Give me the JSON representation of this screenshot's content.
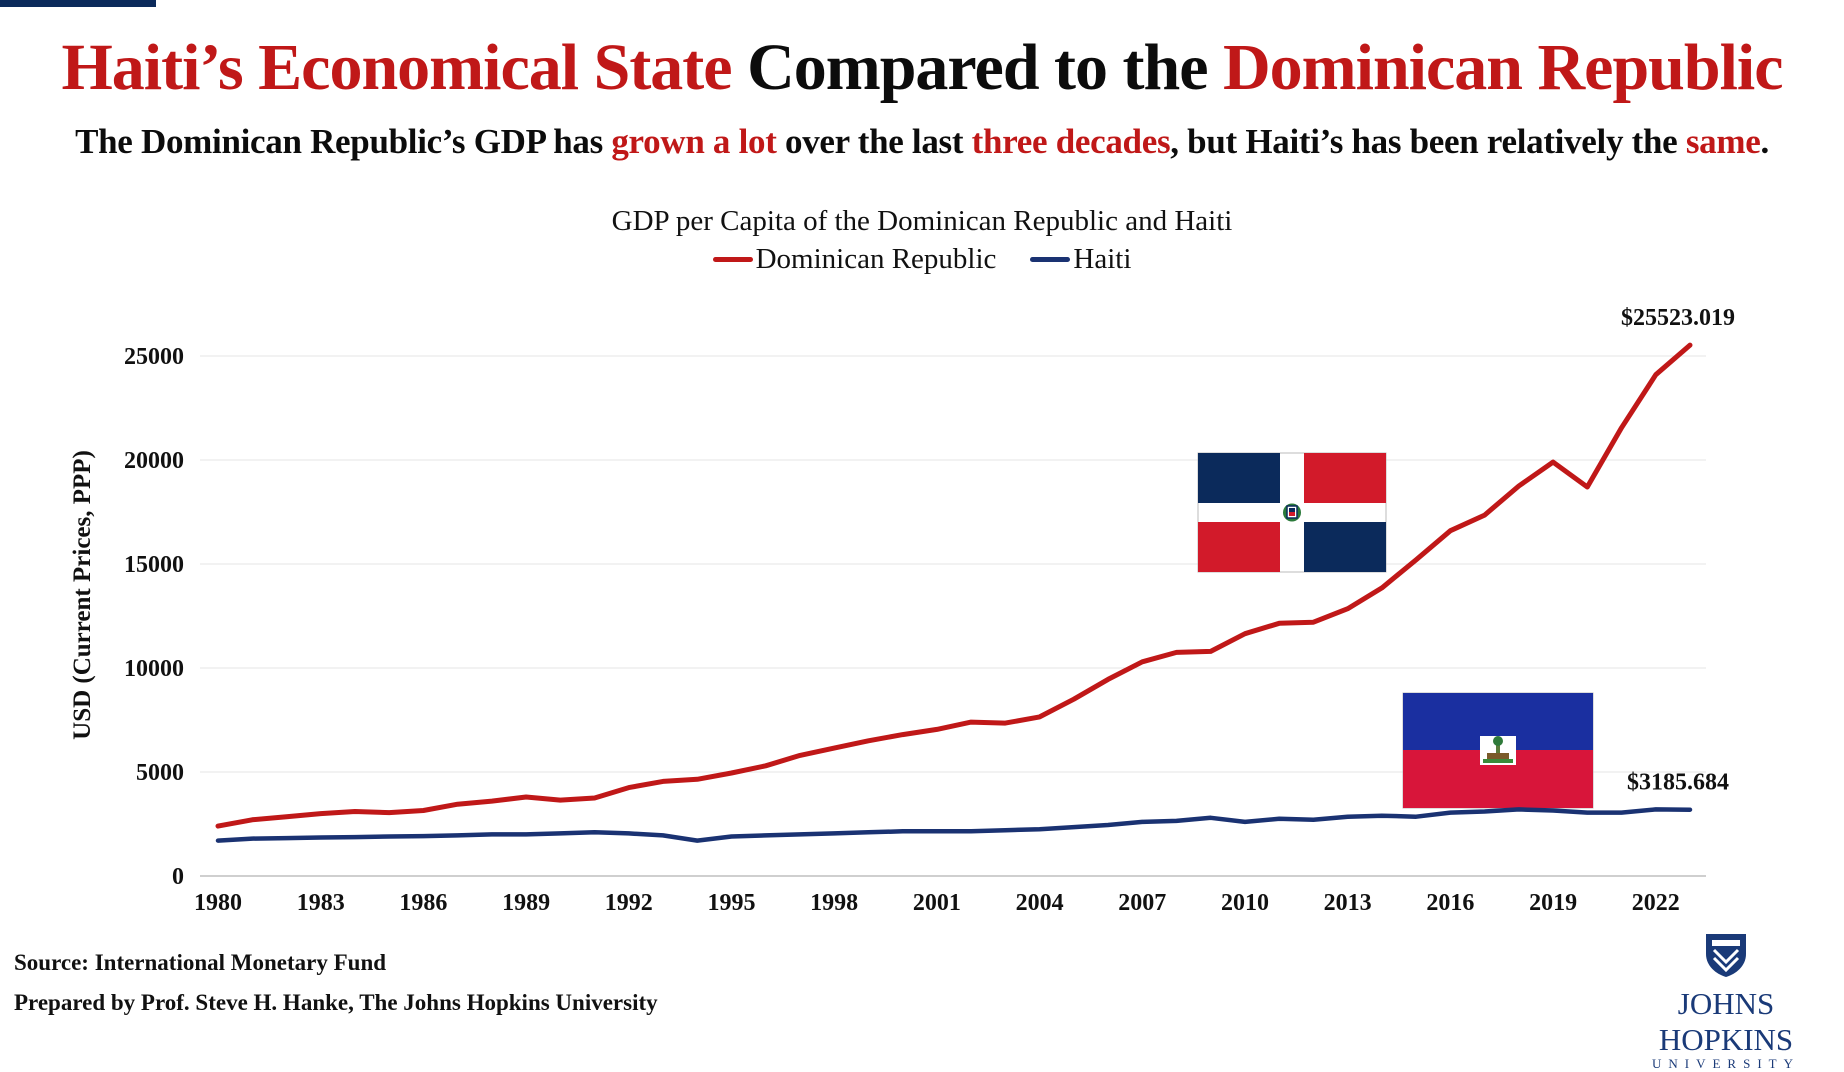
{
  "header": {
    "title_parts": [
      {
        "text": "Haiti’s Economical State",
        "color": "#c01818"
      },
      {
        "text": " Compared to the ",
        "color": "#0c0c0c"
      },
      {
        "text": "Dominican Republic",
        "color": "#c01818"
      }
    ],
    "subtitle_parts": [
      {
        "text": "The Dominican Republic’s GDP has ",
        "color": "#0c0c0c"
      },
      {
        "text": "grown a lot",
        "color": "#c01818"
      },
      {
        "text": " over the last ",
        "color": "#0c0c0c"
      },
      {
        "text": "three decades",
        "color": "#c01818"
      },
      {
        "text": ", but Haiti’s has been relatively the ",
        "color": "#0c0c0c"
      },
      {
        "text": "same",
        "color": "#c01818"
      },
      {
        "text": ".",
        "color": "#0c0c0c"
      }
    ]
  },
  "chart_data": {
    "type": "line",
    "title": "GDP per Capita of the Dominican Republic and Haiti",
    "ylabel": "USD (Current Prices, PPP)",
    "xlabel": "",
    "ylim": [
      0,
      25000
    ],
    "yticks": [
      0,
      5000,
      10000,
      15000,
      20000,
      25000
    ],
    "xticks": [
      1980,
      1983,
      1986,
      1989,
      1992,
      1995,
      1998,
      2001,
      2004,
      2007,
      2010,
      2013,
      2016,
      2019,
      2022
    ],
    "grid": "horizontal",
    "legend_position": "top-center",
    "x": [
      1980,
      1981,
      1982,
      1983,
      1984,
      1985,
      1986,
      1987,
      1988,
      1989,
      1990,
      1991,
      1992,
      1993,
      1994,
      1995,
      1996,
      1997,
      1998,
      1999,
      2000,
      2001,
      2002,
      2003,
      2004,
      2005,
      2006,
      2007,
      2008,
      2009,
      2010,
      2011,
      2012,
      2013,
      2014,
      2015,
      2016,
      2017,
      2018,
      2019,
      2020,
      2021,
      2022,
      2023
    ],
    "series": [
      {
        "name": "Dominican Republic",
        "color": "#c01818",
        "values": [
          2400,
          2700,
          2850,
          3000,
          3100,
          3050,
          3150,
          3450,
          3600,
          3800,
          3650,
          3750,
          4250,
          4550,
          4650,
          4950,
          5300,
          5800,
          6150,
          6500,
          6800,
          7050,
          7400,
          7350,
          7650,
          8500,
          9450,
          10300,
          10750,
          10800,
          11650,
          12150,
          12200,
          12850,
          13850,
          15200,
          16600,
          17350,
          18750,
          19900,
          18700,
          21550,
          24100,
          25523.019
        ],
        "end_label": "$25523.019"
      },
      {
        "name": "Haiti",
        "color": "#1a3272",
        "values": [
          1700,
          1800,
          1820,
          1850,
          1870,
          1900,
          1920,
          1950,
          2000,
          2000,
          2050,
          2100,
          2050,
          1950,
          1700,
          1900,
          1950,
          2000,
          2050,
          2100,
          2150,
          2150,
          2150,
          2200,
          2250,
          2350,
          2450,
          2600,
          2650,
          2800,
          2600,
          2750,
          2700,
          2850,
          2900,
          2850,
          3050,
          3100,
          3200,
          3150,
          3050,
          3050,
          3200,
          3185.684
        ],
        "end_label": "$3185.684"
      }
    ]
  },
  "flags": {
    "dominican_republic": "dominican-republic-flag-icon",
    "haiti": "haiti-flag-icon"
  },
  "footer": {
    "source": "Source: International Monetary Fund",
    "prepared_by": "Prepared by Prof. Steve H. Hanke, The Johns Hopkins University"
  },
  "logo": {
    "name": "JOHNS HOPKINS",
    "sub": "UNIVERSITY"
  }
}
